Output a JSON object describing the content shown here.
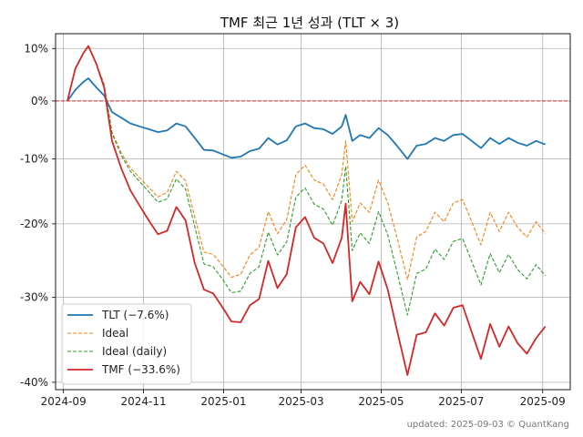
{
  "chart_data": {
    "type": "line",
    "title": "TMF 최근 1년 성과 (TLT × 3)",
    "footer": "updated: 2025-09-03 © QuantKang",
    "xlim": [
      "2024-08-26",
      "2025-09-22"
    ],
    "ylim": [
      -40.8,
      13.0
    ],
    "y_scale": "log-return",
    "grid": true,
    "legend_position": "lower-left",
    "x_ticks": [
      {
        "date": "2024-09-01",
        "label": "2024-09"
      },
      {
        "date": "2024-11-01",
        "label": "2024-11"
      },
      {
        "date": "2025-01-01",
        "label": "2025-01"
      },
      {
        "date": "2025-03-01",
        "label": "2025-03"
      },
      {
        "date": "2025-05-01",
        "label": "2025-05"
      },
      {
        "date": "2025-07-01",
        "label": "2025-07"
      },
      {
        "date": "2025-09-01",
        "label": "2025-09"
      }
    ],
    "y_ticks": [
      {
        "value": 10,
        "label": "10%"
      },
      {
        "value": 0,
        "label": "0%"
      },
      {
        "value": -10,
        "label": "-10%"
      },
      {
        "value": -20,
        "label": "-20%"
      },
      {
        "value": -30,
        "label": "-30%"
      },
      {
        "value": -40,
        "label": "-40%"
      }
    ],
    "reference_line": {
      "value": 0,
      "color": "#d62728",
      "style": "dashed"
    },
    "series": [
      {
        "name": "TLT (−7.6%)",
        "color": "#1f77b4",
        "style": "solid",
        "width": 1.8,
        "x": [
          "2024-09-04",
          "2024-09-10",
          "2024-09-16",
          "2024-09-20",
          "2024-09-26",
          "2024-10-02",
          "2024-10-08",
          "2024-10-15",
          "2024-10-22",
          "2024-10-29",
          "2024-11-05",
          "2024-11-12",
          "2024-11-19",
          "2024-11-26",
          "2024-12-03",
          "2024-12-10",
          "2024-12-17",
          "2024-12-24",
          "2024-12-31",
          "2025-01-07",
          "2025-01-14",
          "2025-01-21",
          "2025-01-28",
          "2025-02-04",
          "2025-02-11",
          "2025-02-18",
          "2025-02-25",
          "2025-03-04",
          "2025-03-11",
          "2025-03-18",
          "2025-03-25",
          "2025-04-01",
          "2025-04-04",
          "2025-04-09",
          "2025-04-15",
          "2025-04-22",
          "2025-04-29",
          "2025-05-06",
          "2025-05-13",
          "2025-05-21",
          "2025-05-28",
          "2025-06-04",
          "2025-06-11",
          "2025-06-18",
          "2025-06-25",
          "2025-07-02",
          "2025-07-09",
          "2025-07-16",
          "2025-07-23",
          "2025-07-30",
          "2025-08-06",
          "2025-08-13",
          "2025-08-20",
          "2025-08-27",
          "2025-09-03"
        ],
        "y": [
          0.0,
          2.0,
          3.5,
          4.2,
          2.5,
          1.0,
          -2.0,
          -3.0,
          -4.0,
          -4.5,
          -5.0,
          -5.5,
          -5.2,
          -4.0,
          -4.5,
          -6.5,
          -8.5,
          -8.6,
          -9.2,
          -9.8,
          -9.6,
          -8.7,
          -8.3,
          -6.5,
          -7.6,
          -6.9,
          -4.5,
          -4.0,
          -4.8,
          -5.0,
          -5.8,
          -4.5,
          -2.5,
          -7.0,
          -6.0,
          -6.5,
          -4.8,
          -6.0,
          -7.8,
          -10.0,
          -7.8,
          -7.5,
          -6.5,
          -7.0,
          -6.0,
          -5.8,
          -7.0,
          -8.2,
          -6.5,
          -7.5,
          -6.5,
          -7.3,
          -7.8,
          -7.0,
          -7.6
        ]
      },
      {
        "name": "Ideal",
        "color": "#ff7f0e",
        "style": "dashed",
        "width": 1.1,
        "x": [
          "2024-09-04",
          "2024-09-10",
          "2024-09-16",
          "2024-09-20",
          "2024-09-26",
          "2024-10-02",
          "2024-10-08",
          "2024-10-15",
          "2024-10-22",
          "2024-10-29",
          "2024-11-05",
          "2024-11-12",
          "2024-11-19",
          "2024-11-26",
          "2024-12-03",
          "2024-12-10",
          "2024-12-17",
          "2024-12-24",
          "2024-12-31",
          "2025-01-07",
          "2025-01-14",
          "2025-01-21",
          "2025-01-28",
          "2025-02-04",
          "2025-02-11",
          "2025-02-18",
          "2025-02-25",
          "2025-03-04",
          "2025-03-11",
          "2025-03-18",
          "2025-03-25",
          "2025-04-01",
          "2025-04-04",
          "2025-04-09",
          "2025-04-15",
          "2025-04-22",
          "2025-04-29",
          "2025-05-06",
          "2025-05-13",
          "2025-05-21",
          "2025-05-28",
          "2025-06-04",
          "2025-06-11",
          "2025-06-18",
          "2025-06-25",
          "2025-07-02",
          "2025-07-09",
          "2025-07-16",
          "2025-07-23",
          "2025-07-30",
          "2025-08-06",
          "2025-08-13",
          "2025-08-20",
          "2025-08-27",
          "2025-09-03"
        ],
        "y": [
          0.0,
          6.0,
          9.0,
          10.5,
          7.0,
          3.0,
          -5.5,
          -9.0,
          -11.5,
          -13.0,
          -14.5,
          -16.0,
          -15.3,
          -12.0,
          -13.5,
          -19.0,
          -24.0,
          -24.3,
          -25.8,
          -27.4,
          -27.0,
          -24.4,
          -23.3,
          -18.2,
          -21.4,
          -19.4,
          -12.5,
          -11.0,
          -13.4,
          -14.0,
          -16.4,
          -12.5,
          -7.0,
          -19.7,
          -16.9,
          -18.3,
          -13.4,
          -16.9,
          -21.9,
          -27.7,
          -21.9,
          -21.1,
          -18.3,
          -19.7,
          -16.9,
          -16.4,
          -19.7,
          -23.0,
          -18.3,
          -21.1,
          -18.3,
          -20.5,
          -21.9,
          -19.7,
          -21.4
        ]
      },
      {
        "name": "Ideal (daily)",
        "color": "#2ca02c",
        "style": "dashed",
        "width": 1.1,
        "x": [
          "2024-09-04",
          "2024-09-10",
          "2024-09-16",
          "2024-09-20",
          "2024-09-26",
          "2024-10-02",
          "2024-10-08",
          "2024-10-15",
          "2024-10-22",
          "2024-10-29",
          "2024-11-05",
          "2024-11-12",
          "2024-11-19",
          "2024-11-26",
          "2024-12-03",
          "2024-12-10",
          "2024-12-17",
          "2024-12-24",
          "2024-12-31",
          "2025-01-07",
          "2025-01-14",
          "2025-01-21",
          "2025-01-28",
          "2025-02-04",
          "2025-02-11",
          "2025-02-18",
          "2025-02-25",
          "2025-03-04",
          "2025-03-11",
          "2025-03-18",
          "2025-03-25",
          "2025-04-01",
          "2025-04-04",
          "2025-04-09",
          "2025-04-15",
          "2025-04-22",
          "2025-04-29",
          "2025-05-06",
          "2025-05-13",
          "2025-05-21",
          "2025-05-28",
          "2025-06-04",
          "2025-06-11",
          "2025-06-18",
          "2025-06-25",
          "2025-07-02",
          "2025-07-09",
          "2025-07-16",
          "2025-07-23",
          "2025-07-30",
          "2025-08-06",
          "2025-08-13",
          "2025-08-20",
          "2025-08-27",
          "2025-09-03"
        ],
        "y": [
          0.0,
          6.0,
          9.0,
          10.5,
          7.0,
          3.0,
          -5.7,
          -9.4,
          -12.0,
          -13.6,
          -15.2,
          -16.8,
          -16.3,
          -13.2,
          -14.8,
          -20.4,
          -25.6,
          -26.0,
          -27.6,
          -29.4,
          -29.2,
          -26.9,
          -26.0,
          -21.2,
          -24.4,
          -22.6,
          -16.0,
          -14.6,
          -17.1,
          -17.8,
          -20.2,
          -16.5,
          -11.2,
          -23.8,
          -21.3,
          -22.8,
          -18.2,
          -21.6,
          -26.6,
          -32.2,
          -26.9,
          -26.3,
          -23.6,
          -25.0,
          -22.5,
          -22.1,
          -25.3,
          -28.4,
          -24.2,
          -26.8,
          -24.3,
          -26.4,
          -27.6,
          -25.7,
          -27.2
        ]
      },
      {
        "name": "TMF (−33.6%)",
        "color": "#d62728",
        "style": "solid",
        "width": 1.8,
        "x": [
          "2024-09-04",
          "2024-09-10",
          "2024-09-16",
          "2024-09-20",
          "2024-09-26",
          "2024-10-02",
          "2024-10-08",
          "2024-10-15",
          "2024-10-22",
          "2024-10-29",
          "2024-11-05",
          "2024-11-12",
          "2024-11-19",
          "2024-11-26",
          "2024-12-03",
          "2024-12-10",
          "2024-12-17",
          "2024-12-24",
          "2024-12-31",
          "2025-01-07",
          "2025-01-14",
          "2025-01-21",
          "2025-01-28",
          "2025-02-04",
          "2025-02-11",
          "2025-02-18",
          "2025-02-25",
          "2025-03-04",
          "2025-03-11",
          "2025-03-18",
          "2025-03-25",
          "2025-04-01",
          "2025-04-04",
          "2025-04-09",
          "2025-04-15",
          "2025-04-22",
          "2025-04-29",
          "2025-05-06",
          "2025-05-13",
          "2025-05-21",
          "2025-05-28",
          "2025-06-04",
          "2025-06-11",
          "2025-06-18",
          "2025-06-25",
          "2025-07-02",
          "2025-07-09",
          "2025-07-16",
          "2025-07-23",
          "2025-07-30",
          "2025-08-06",
          "2025-08-13",
          "2025-08-20",
          "2025-08-27",
          "2025-09-03"
        ],
        "y": [
          0.0,
          6.0,
          9.0,
          10.5,
          7.0,
          2.5,
          -7.0,
          -11.5,
          -15.0,
          -17.3,
          -19.5,
          -21.5,
          -21.0,
          -17.5,
          -19.5,
          -25.5,
          -29.0,
          -29.5,
          -31.2,
          -33.0,
          -33.1,
          -31.0,
          -30.2,
          -25.2,
          -28.8,
          -27.0,
          -20.5,
          -19.0,
          -22.0,
          -22.8,
          -25.5,
          -22.0,
          -17.0,
          -30.5,
          -28.0,
          -29.6,
          -25.3,
          -29.0,
          -34.0,
          -39.2,
          -34.6,
          -34.3,
          -32.0,
          -33.5,
          -31.3,
          -31.0,
          -34.3,
          -37.4,
          -33.3,
          -36.0,
          -33.6,
          -35.6,
          -36.8,
          -35.0,
          -33.6
        ]
      }
    ]
  }
}
